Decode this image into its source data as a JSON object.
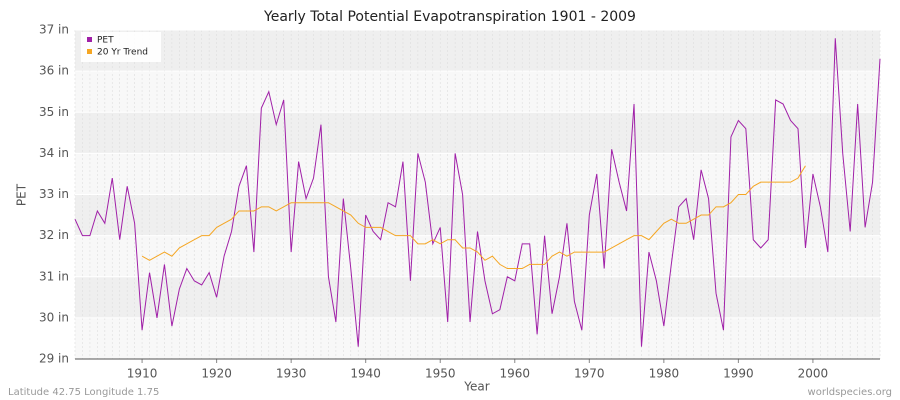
{
  "chart_data": {
    "type": "line",
    "title": "Yearly Total Potential Evapotranspiration 1901 - 2009",
    "x_label": "Year",
    "y_label": "PET",
    "footer_left": "Latitude 42.75 Longitude 1.75",
    "footer_right": "worldspecies.org",
    "x": [
      1901,
      1902,
      1903,
      1904,
      1905,
      1906,
      1907,
      1908,
      1909,
      1910,
      1911,
      1912,
      1913,
      1914,
      1915,
      1916,
      1917,
      1918,
      1919,
      1920,
      1921,
      1922,
      1923,
      1924,
      1925,
      1926,
      1927,
      1928,
      1929,
      1930,
      1931,
      1932,
      1933,
      1934,
      1935,
      1936,
      1937,
      1938,
      1939,
      1940,
      1941,
      1942,
      1943,
      1944,
      1945,
      1946,
      1947,
      1948,
      1949,
      1950,
      1951,
      1952,
      1953,
      1954,
      1955,
      1956,
      1957,
      1958,
      1959,
      1960,
      1961,
      1962,
      1963,
      1964,
      1965,
      1966,
      1967,
      1968,
      1969,
      1970,
      1971,
      1972,
      1973,
      1974,
      1975,
      1976,
      1977,
      1978,
      1979,
      1980,
      1981,
      1982,
      1983,
      1984,
      1985,
      1986,
      1987,
      1988,
      1989,
      1990,
      1991,
      1992,
      1993,
      1994,
      1995,
      1996,
      1997,
      1998,
      1999,
      2000,
      2001,
      2002,
      2003,
      2004,
      2005,
      2006,
      2007,
      2008,
      2009
    ],
    "series": [
      {
        "name": "PET",
        "color": "#a020a8",
        "values": [
          32.4,
          32.0,
          32.0,
          32.6,
          32.3,
          33.4,
          31.9,
          33.2,
          32.3,
          29.7,
          31.1,
          30.0,
          31.3,
          29.8,
          30.7,
          31.2,
          30.9,
          30.8,
          31.1,
          30.5,
          31.5,
          32.1,
          33.2,
          33.7,
          31.6,
          35.1,
          35.5,
          34.7,
          35.3,
          31.6,
          33.8,
          32.9,
          33.4,
          34.7,
          31.0,
          29.9,
          32.9,
          31.2,
          29.3,
          32.5,
          32.1,
          31.9,
          32.8,
          32.7,
          33.8,
          30.9,
          34.0,
          33.3,
          31.8,
          32.2,
          29.9,
          34.0,
          33.0,
          29.9,
          32.1,
          30.9,
          30.1,
          30.2,
          31.0,
          30.9,
          31.8,
          31.8,
          29.6,
          32.0,
          30.1,
          31.0,
          32.3,
          30.4,
          29.7,
          32.5,
          33.5,
          31.2,
          34.1,
          33.3,
          32.6,
          35.2,
          29.3,
          31.6,
          30.9,
          29.8,
          31.3,
          32.7,
          32.9,
          31.9,
          33.6,
          32.9,
          30.6,
          29.7,
          34.4,
          34.8,
          34.6,
          31.9,
          31.7,
          31.9,
          35.3,
          35.2,
          34.8,
          34.6,
          31.7,
          33.5,
          32.7,
          31.6,
          36.8,
          34.0,
          32.1,
          35.2,
          32.2,
          33.3,
          36.3
        ]
      },
      {
        "name": "20 Yr Trend",
        "color": "#f5a623",
        "values": [
          null,
          null,
          null,
          null,
          null,
          null,
          null,
          null,
          null,
          31.5,
          31.4,
          31.5,
          31.6,
          31.5,
          31.7,
          31.8,
          31.9,
          32.0,
          32.0,
          32.2,
          32.3,
          32.4,
          32.6,
          32.6,
          32.6,
          32.7,
          32.7,
          32.6,
          32.7,
          32.8,
          32.8,
          32.8,
          32.8,
          32.8,
          32.8,
          32.7,
          32.6,
          32.5,
          32.3,
          32.2,
          32.2,
          32.2,
          32.1,
          32.0,
          32.0,
          32.0,
          31.8,
          31.8,
          31.9,
          31.8,
          31.9,
          31.9,
          31.7,
          31.7,
          31.6,
          31.4,
          31.5,
          31.3,
          31.2,
          31.2,
          31.2,
          31.3,
          31.3,
          31.3,
          31.5,
          31.6,
          31.5,
          31.6,
          31.6,
          31.6,
          31.6,
          31.6,
          31.7,
          31.8,
          31.9,
          32.0,
          32.0,
          31.9,
          32.1,
          32.3,
          32.4,
          32.3,
          32.3,
          32.4,
          32.5,
          32.5,
          32.7,
          32.7,
          32.8,
          33.0,
          33.0,
          33.2,
          33.3,
          33.3,
          33.3,
          33.3,
          33.3,
          33.4,
          33.7,
          null,
          null,
          null,
          null,
          null,
          null,
          null,
          null,
          null,
          null
        ]
      }
    ],
    "xlim": [
      1901,
      2009
    ],
    "ylim": [
      29,
      37
    ],
    "xticks": [
      1910,
      1920,
      1930,
      1940,
      1950,
      1960,
      1970,
      1980,
      1990,
      2000
    ],
    "yticks": [
      {
        "value": 29,
        "label": "29 in"
      },
      {
        "value": 30,
        "label": "30 in"
      },
      {
        "value": 31,
        "label": "31 in"
      },
      {
        "value": 32,
        "label": "32 in"
      },
      {
        "value": 33,
        "label": "33 in"
      },
      {
        "value": 34,
        "label": "34 in"
      },
      {
        "value": 35,
        "label": "35 in"
      },
      {
        "value": 36,
        "label": "36 in"
      },
      {
        "value": 37,
        "label": "37 in"
      }
    ],
    "grid": true,
    "legend_position": "top-left"
  }
}
